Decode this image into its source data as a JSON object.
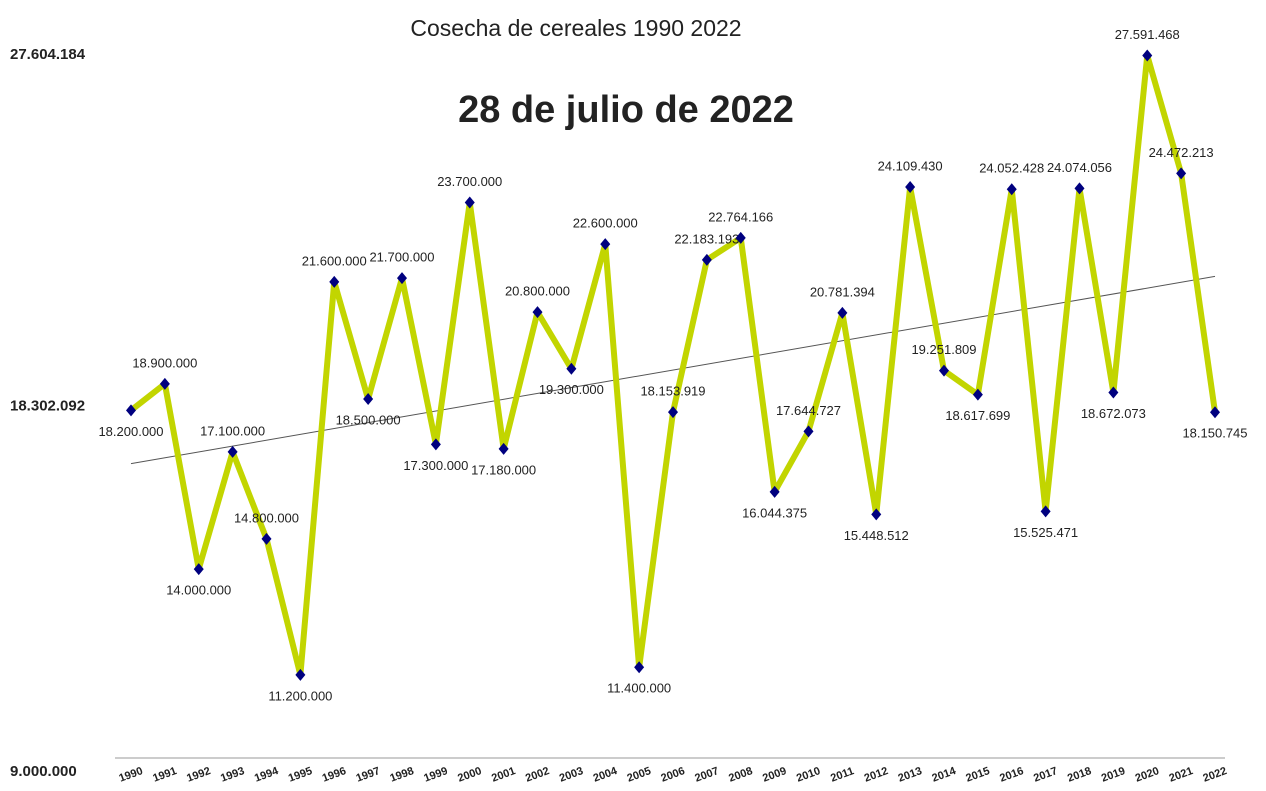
{
  "chart_data": {
    "type": "line",
    "title": "Cosecha de cereales 1990 2022",
    "subtitle": "28 de julio de 2022",
    "categories": [
      "1990",
      "1991",
      "1992",
      "1993",
      "1994",
      "1995",
      "1996",
      "1997",
      "1998",
      "1999",
      "2000",
      "2001",
      "2002",
      "2003",
      "2004",
      "2005",
      "2006",
      "2007",
      "2008",
      "2009",
      "2010",
      "2011",
      "2012",
      "2013",
      "2014",
      "2015",
      "2016",
      "2017",
      "2018",
      "2019",
      "2020",
      "2021",
      "2022"
    ],
    "values": [
      18200000,
      18900000,
      14000000,
      17100000,
      14800000,
      11200000,
      21600000,
      18500000,
      21700000,
      17300000,
      23700000,
      17180000,
      20800000,
      19300000,
      22600000,
      11400000,
      18153919,
      22183193,
      22764166,
      16044375,
      17644727,
      20781394,
      15448512,
      24109430,
      19251809,
      18617699,
      24052428,
      15525471,
      24074056,
      18672073,
      27591468,
      24472213,
      18150745
    ],
    "value_labels": [
      "18.200.000",
      "18.900.000",
      "14.000.000",
      "17.100.000",
      "14.800.000",
      "11.200.000",
      "21.600.000",
      "18.500.000",
      "21.700.000",
      "17.300.000",
      "23.700.000",
      "17.180.000",
      "20.800.000",
      "19.300.000",
      "22.600.000",
      "11.400.000",
      "18.153.919",
      "22.183.193",
      "22.764.166",
      "16.044.375",
      "17.644.727",
      "20.781.394",
      "15.448.512",
      "24.109.430",
      "19.251.809",
      "18.617.699",
      "24.052.428",
      "15.525.471",
      "24.074.056",
      "18.672.073",
      "27.591.468",
      "24.472.213",
      "18.150.745"
    ],
    "color": "#c2d500",
    "marker_color": "#00007f",
    "trendline": true,
    "ylim": [
      9000000,
      27604184
    ],
    "yticks": [
      {
        "value": 9000000,
        "label": "9.000.000"
      },
      {
        "value": 18302092,
        "label": "18.302.092"
      },
      {
        "value": 27604184,
        "label": "27.604.184"
      }
    ]
  }
}
